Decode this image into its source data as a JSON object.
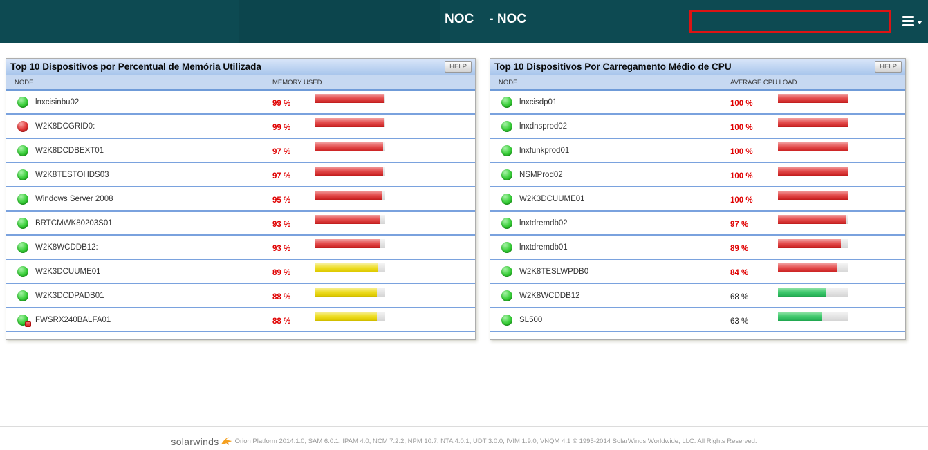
{
  "header": {
    "app_title": "NOC",
    "view_title": "- NOC"
  },
  "panels": [
    {
      "title": "Top 10 Dispositivos por Percentual de Memória Utilizada",
      "help_label": "HELP",
      "columns": {
        "node": "NODE",
        "value": "MEMORY USED"
      },
      "rows": [
        {
          "node": "lnxcisinbu02",
          "status": "up",
          "value": 99,
          "value_label": "99 %",
          "bar_color": "red",
          "text_color": "red"
        },
        {
          "node": "W2K8DCGRID0:",
          "status": "down",
          "value": 99,
          "value_label": "99 %",
          "bar_color": "red",
          "text_color": "red"
        },
        {
          "node": "W2K8DCDBEXT01",
          "status": "up",
          "value": 97,
          "value_label": "97 %",
          "bar_color": "red",
          "text_color": "red"
        },
        {
          "node": "W2K8TESTOHDS03",
          "status": "up",
          "value": 97,
          "value_label": "97 %",
          "bar_color": "red",
          "text_color": "red"
        },
        {
          "node": "Windows Server 2008",
          "status": "up",
          "value": 95,
          "value_label": "95 %",
          "bar_color": "red",
          "text_color": "red"
        },
        {
          "node": "BRTCMWK80203S01",
          "status": "up",
          "value": 93,
          "value_label": "93 %",
          "bar_color": "red",
          "text_color": "red"
        },
        {
          "node": "W2K8WCDDB12:",
          "status": "up",
          "value": 93,
          "value_label": "93 %",
          "bar_color": "red",
          "text_color": "red"
        },
        {
          "node": "W2K3DCUUME01",
          "status": "up",
          "value": 89,
          "value_label": "89 %",
          "bar_color": "yellow",
          "text_color": "red"
        },
        {
          "node": "W2K3DCDPADB01",
          "status": "up",
          "value": 88,
          "value_label": "88 %",
          "bar_color": "yellow",
          "text_color": "red"
        },
        {
          "node": "FWSRX240BALFA01",
          "status": "up-warn",
          "value": 88,
          "value_label": "88 %",
          "bar_color": "yellow",
          "text_color": "red"
        }
      ]
    },
    {
      "title": "Top 10 Dispositivos Por Carregamento Médio de CPU",
      "help_label": "HELP",
      "columns": {
        "node": "NODE",
        "value": "AVERAGE CPU LOAD"
      },
      "rows": [
        {
          "node": "lnxcisdp01",
          "status": "up",
          "value": 100,
          "value_label": "100 %",
          "bar_color": "red",
          "text_color": "red"
        },
        {
          "node": "lnxdnsprod02",
          "status": "up",
          "value": 100,
          "value_label": "100 %",
          "bar_color": "red",
          "text_color": "red"
        },
        {
          "node": "lnxfunkprod01",
          "status": "up",
          "value": 100,
          "value_label": "100 %",
          "bar_color": "red",
          "text_color": "red"
        },
        {
          "node": "NSMProd02",
          "status": "up",
          "value": 100,
          "value_label": "100 %",
          "bar_color": "red",
          "text_color": "red"
        },
        {
          "node": "W2K3DCUUME01",
          "status": "up",
          "value": 100,
          "value_label": "100 %",
          "bar_color": "red",
          "text_color": "red"
        },
        {
          "node": "lnxtdremdb02",
          "status": "up",
          "value": 97,
          "value_label": "97 %",
          "bar_color": "red",
          "text_color": "red"
        },
        {
          "node": "lnxtdremdb01",
          "status": "up",
          "value": 89,
          "value_label": "89 %",
          "bar_color": "red",
          "text_color": "red"
        },
        {
          "node": "W2K8TESLWPDB0",
          "status": "up",
          "value": 84,
          "value_label": "84 %",
          "bar_color": "red",
          "text_color": "red"
        },
        {
          "node": "W2K8WCDDB12",
          "status": "up",
          "value": 68,
          "value_label": "68 %",
          "bar_color": "green",
          "text_color": "black"
        },
        {
          "node": "SL500",
          "status": "up",
          "value": 63,
          "value_label": "63 %",
          "bar_color": "green",
          "text_color": "black"
        }
      ]
    }
  ],
  "footer": {
    "logo_text": "solarwinds",
    "credits": "Orion Platform 2014.1.0, SAM 6.0.1, IPAM 4.0, NCM 7.2.2, NPM 10.7, NTA 4.0.1, UDT 3.0.0, IVIM 1.9.0, VNQM 4.1 © 1995-2014 SolarWinds Worldwide, LLC. All Rights Reserved."
  },
  "colors": {
    "header_bg": "#0d4a52",
    "highlight_border": "#dc1414",
    "bar_red": "#e03a3a",
    "bar_yellow": "#eedd22",
    "bar_green": "#41ca6e",
    "value_red": "#e00000",
    "row_divider": "#7aa2de",
    "titlebar_top": "#d9e6f9",
    "titlebar_bottom": "#a9c6ec"
  }
}
